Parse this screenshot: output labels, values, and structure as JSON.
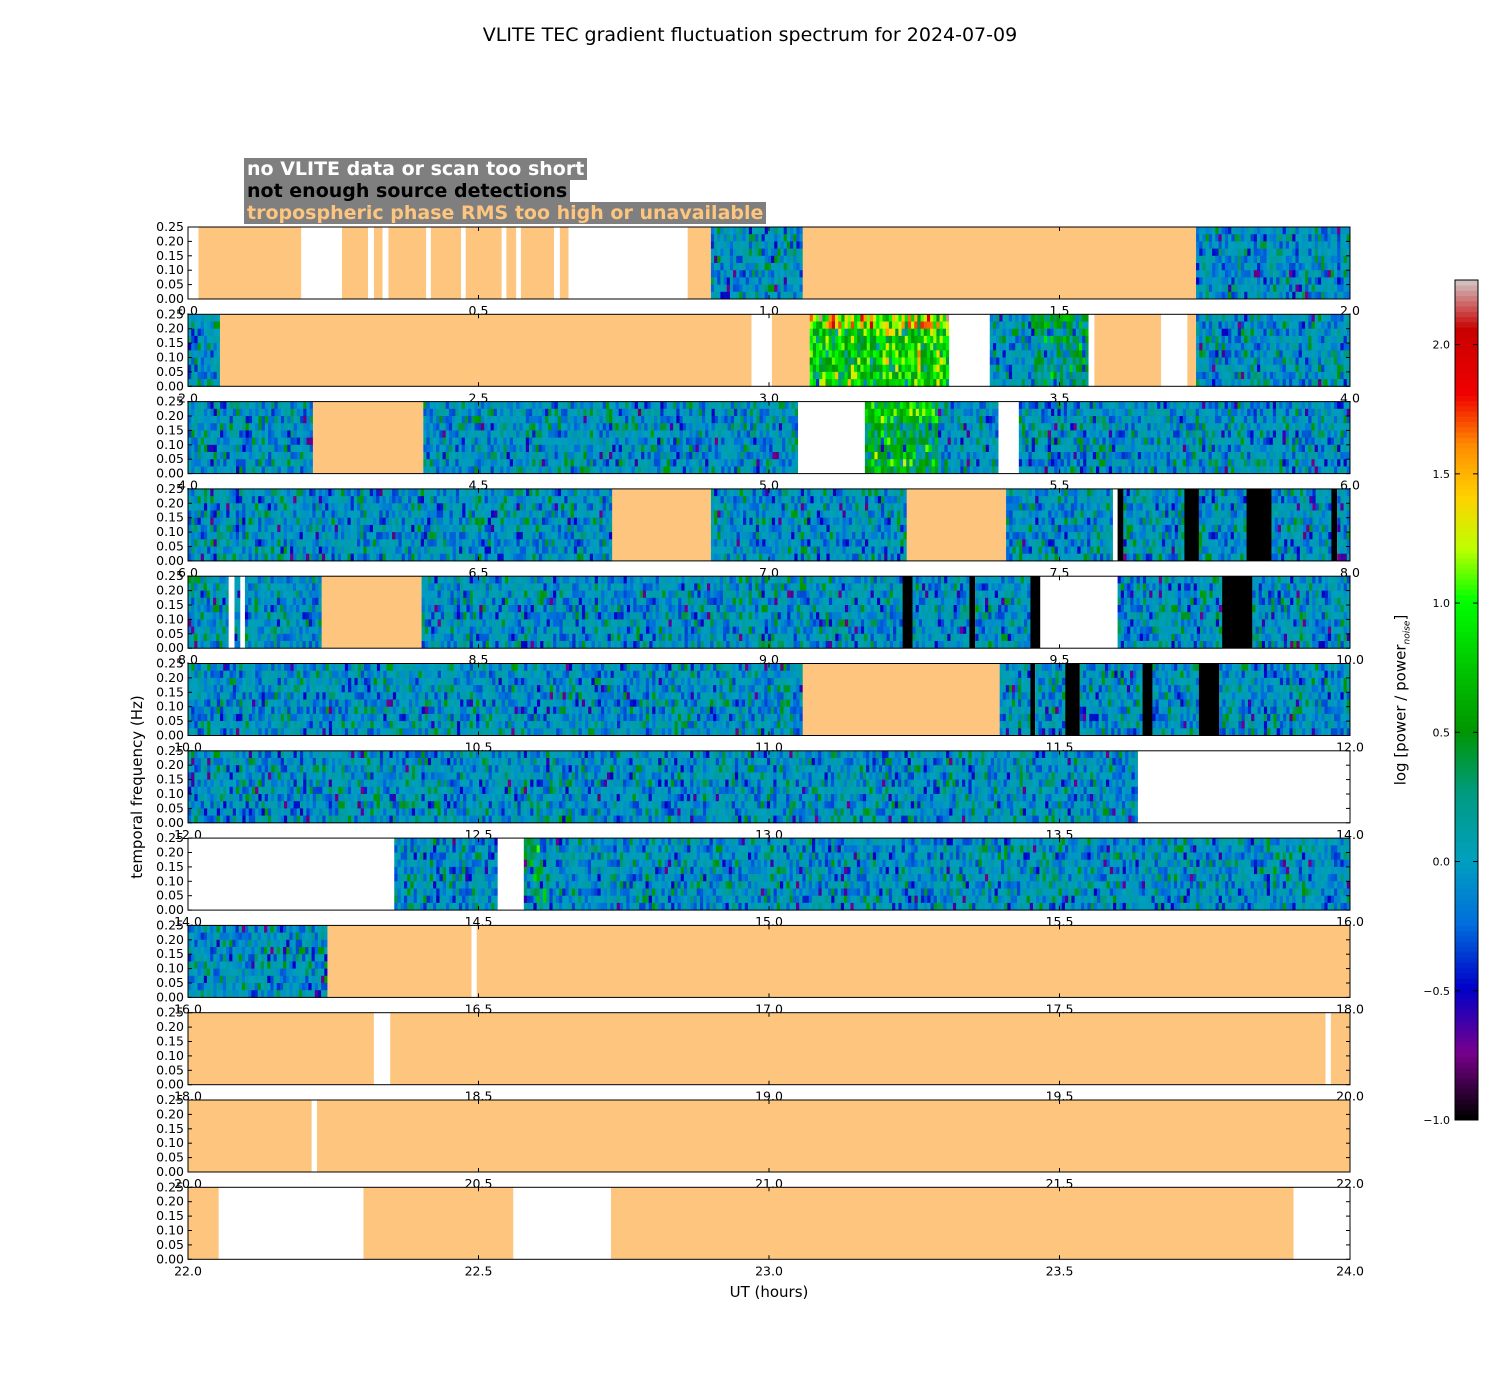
{
  "chart_data": {
    "type": "heatmap",
    "title": "VLITE TEC gradient fluctuation spectrum for 2024-07-09",
    "xlabel": "UT (hours)",
    "ylabel": "temporal frequency (Hz)",
    "ylim": [
      0,
      0.25
    ],
    "yticks": [
      "0.00",
      "0.05",
      "0.10",
      "0.15",
      "0.20",
      "0.25"
    ],
    "legend": [
      {
        "key": "nodata",
        "label": "no VLITE data or scan too short",
        "color": "#ffffff"
      },
      {
        "key": "nodet",
        "label": "not enough source detections",
        "color": "#000000"
      },
      {
        "key": "tropo",
        "label": "tropospheric phase RMS too high or unavailable",
        "color": "#fdc57e"
      }
    ],
    "colorbar": {
      "label_main": "log [power / power",
      "label_sub": "noise",
      "label_end": "]",
      "range": [
        -1.0,
        2.25
      ],
      "ticks": [
        "−1.0",
        "−0.5",
        "0.0",
        "0.5",
        "1.0",
        "1.5",
        "2.0"
      ],
      "tick_values": [
        -1.0,
        -0.5,
        0.0,
        0.5,
        1.0,
        1.5,
        2.0
      ]
    },
    "rows": [
      {
        "start": 0,
        "ticks": [
          "0.0",
          "0.5",
          "1.0",
          "1.5",
          "2.0"
        ],
        "segments": [
          [
            "w",
            0,
            0.018
          ],
          [
            "t",
            0.018,
            0.195
          ],
          [
            "w",
            0.195,
            0.265
          ],
          [
            "t",
            0.265,
            0.31
          ],
          [
            "w",
            0.31,
            0.32
          ],
          [
            "t",
            0.32,
            0.335
          ],
          [
            "w",
            0.335,
            0.345
          ],
          [
            "t",
            0.345,
            0.41
          ],
          [
            "w",
            0.41,
            0.418
          ],
          [
            "t",
            0.418,
            0.47
          ],
          [
            "w",
            0.47,
            0.478
          ],
          [
            "t",
            0.478,
            0.54
          ],
          [
            "w",
            0.54,
            0.548
          ],
          [
            "t",
            0.548,
            0.565
          ],
          [
            "w",
            0.565,
            0.573
          ],
          [
            "t",
            0.573,
            0.63
          ],
          [
            "w",
            0.63,
            0.64
          ],
          [
            "t",
            0.64,
            0.655
          ],
          [
            "w",
            0.655,
            0.86
          ],
          [
            "t",
            0.86,
            0.9
          ],
          [
            "d",
            0.9,
            1.058
          ],
          [
            "t",
            1.058,
            1.735
          ],
          [
            "d",
            1.735,
            2.0
          ]
        ],
        "hot": []
      },
      {
        "start": 2,
        "ticks": [
          "2.0",
          "2.5",
          "3.0",
          "3.5",
          "4.0"
        ],
        "segments": [
          [
            "d",
            2.0,
            2.055
          ],
          [
            "t",
            2.055,
            2.97
          ],
          [
            "w",
            2.97,
            3.005
          ],
          [
            "t",
            3.005,
            3.07
          ],
          [
            "d",
            3.07,
            3.31
          ],
          [
            "w",
            3.31,
            3.38
          ],
          [
            "d",
            3.38,
            3.55
          ],
          [
            "w",
            3.55,
            3.56
          ],
          [
            "t",
            3.56,
            3.675
          ],
          [
            "w",
            3.675,
            3.72
          ],
          [
            "t",
            3.72,
            3.735
          ],
          [
            "d",
            3.735,
            4.0
          ]
        ],
        "hot": [
          [
            3.07,
            3.31,
            0.95
          ],
          [
            3.45,
            3.55,
            0.35
          ]
        ]
      },
      {
        "start": 4,
        "ticks": [
          "4.0",
          "4.5",
          "5.0",
          "5.5",
          "6.0"
        ],
        "segments": [
          [
            "d",
            4.0,
            4.215
          ],
          [
            "t",
            4.215,
            4.405
          ],
          [
            "d",
            4.405,
            5.05
          ],
          [
            "w",
            5.05,
            5.165
          ],
          [
            "d",
            5.165,
            5.395
          ],
          [
            "w",
            5.395,
            5.43
          ],
          [
            "d",
            5.43,
            6.0
          ]
        ],
        "hot": [
          [
            5.165,
            5.29,
            0.6
          ]
        ]
      },
      {
        "start": 6,
        "ticks": [
          "6.0",
          "6.5",
          "7.0",
          "7.5",
          "8.0"
        ],
        "segments": [
          [
            "d",
            6.0,
            6.73
          ],
          [
            "t",
            6.73,
            6.9
          ],
          [
            "d",
            6.9,
            7.237
          ],
          [
            "t",
            7.237,
            7.408
          ],
          [
            "d",
            7.408,
            7.592
          ],
          [
            "w",
            7.592,
            7.6
          ],
          [
            "k",
            7.6,
            7.61
          ],
          [
            "d",
            7.61,
            7.715
          ],
          [
            "k",
            7.715,
            7.74
          ],
          [
            "d",
            7.74,
            7.822
          ],
          [
            "k",
            7.822,
            7.865
          ],
          [
            "d",
            7.865,
            7.968
          ],
          [
            "k",
            7.968,
            7.978
          ],
          [
            "d",
            7.978,
            8.0
          ]
        ],
        "hot": []
      },
      {
        "start": 8,
        "ticks": [
          "8.0",
          "8.5",
          "9.0",
          "9.5",
          "10.0"
        ],
        "segments": [
          [
            "d",
            8.0,
            8.07
          ],
          [
            "w",
            8.07,
            8.08
          ],
          [
            "d",
            8.08,
            8.09
          ],
          [
            "w",
            8.09,
            8.098
          ],
          [
            "d",
            8.098,
            8.23
          ],
          [
            "t",
            8.23,
            8.402
          ],
          [
            "d",
            8.402,
            9.23
          ],
          [
            "k",
            9.23,
            9.247
          ],
          [
            "d",
            9.247,
            9.345
          ],
          [
            "k",
            9.345,
            9.355
          ],
          [
            "d",
            9.355,
            9.45
          ],
          [
            "k",
            9.45,
            9.467
          ],
          [
            "w",
            9.467,
            9.6
          ],
          [
            "d",
            9.6,
            9.78
          ],
          [
            "k",
            9.78,
            9.832
          ],
          [
            "d",
            9.832,
            10.0
          ]
        ],
        "hot": []
      },
      {
        "start": 10,
        "ticks": [
          "10.0",
          "10.5",
          "11.0",
          "11.5",
          "12.0"
        ],
        "segments": [
          [
            "d",
            10.0,
            11.058
          ],
          [
            "t",
            11.058,
            11.397
          ],
          [
            "d",
            11.397,
            11.45
          ],
          [
            "k",
            11.45,
            11.458
          ],
          [
            "d",
            11.458,
            11.51
          ],
          [
            "k",
            11.51,
            11.535
          ],
          [
            "d",
            11.535,
            11.643
          ],
          [
            "k",
            11.643,
            11.66
          ],
          [
            "d",
            11.66,
            11.74
          ],
          [
            "k",
            11.74,
            11.775
          ],
          [
            "d",
            11.775,
            12.0
          ]
        ],
        "hot": []
      },
      {
        "start": 12,
        "ticks": [
          "12.0",
          "12.5",
          "13.0",
          "13.5",
          "14.0"
        ],
        "segments": [
          [
            "d",
            12.0,
            13.635
          ],
          [
            "w",
            13.635,
            14.0
          ]
        ],
        "hot": []
      },
      {
        "start": 14,
        "ticks": [
          "14.0",
          "14.5",
          "15.0",
          "15.5",
          "16.0"
        ],
        "segments": [
          [
            "w",
            14.0,
            14.355
          ],
          [
            "d",
            14.355,
            14.533
          ],
          [
            "w",
            14.533,
            14.578
          ],
          [
            "d",
            14.578,
            16.0
          ]
        ],
        "hot": [
          [
            14.578,
            14.62,
            0.3
          ]
        ]
      },
      {
        "start": 16,
        "ticks": [
          "16.0",
          "16.5",
          "17.0",
          "17.5",
          "18.0"
        ],
        "segments": [
          [
            "d",
            16.0,
            16.24
          ],
          [
            "t",
            16.24,
            16.488
          ],
          [
            "w",
            16.488,
            16.497
          ],
          [
            "t",
            16.497,
            18.0
          ]
        ],
        "hot": []
      },
      {
        "start": 18,
        "ticks": [
          "18.0",
          "18.5",
          "19.0",
          "19.5",
          "20.0"
        ],
        "segments": [
          [
            "t",
            18.0,
            18.32
          ],
          [
            "w",
            18.32,
            18.348
          ],
          [
            "t",
            18.348,
            19.958
          ],
          [
            "w",
            19.958,
            19.967
          ],
          [
            "t",
            19.967,
            20.0
          ]
        ],
        "hot": []
      },
      {
        "start": 20,
        "ticks": [
          "20.0",
          "20.5",
          "21.0",
          "21.5",
          "22.0"
        ],
        "segments": [
          [
            "t",
            20.0,
            20.213
          ],
          [
            "w",
            20.213,
            20.222
          ],
          [
            "t",
            20.222,
            22.0
          ]
        ],
        "hot": []
      },
      {
        "start": 22,
        "ticks": [
          "22.0",
          "22.5",
          "23.0",
          "23.5",
          "24.0"
        ],
        "segments": [
          [
            "t",
            22.0,
            22.053
          ],
          [
            "w",
            22.053,
            22.302
          ],
          [
            "t",
            22.302,
            22.56
          ],
          [
            "w",
            22.56,
            22.728
          ],
          [
            "t",
            22.728,
            23.903
          ],
          [
            "w",
            23.903,
            24.0
          ]
        ],
        "hot": []
      }
    ]
  }
}
